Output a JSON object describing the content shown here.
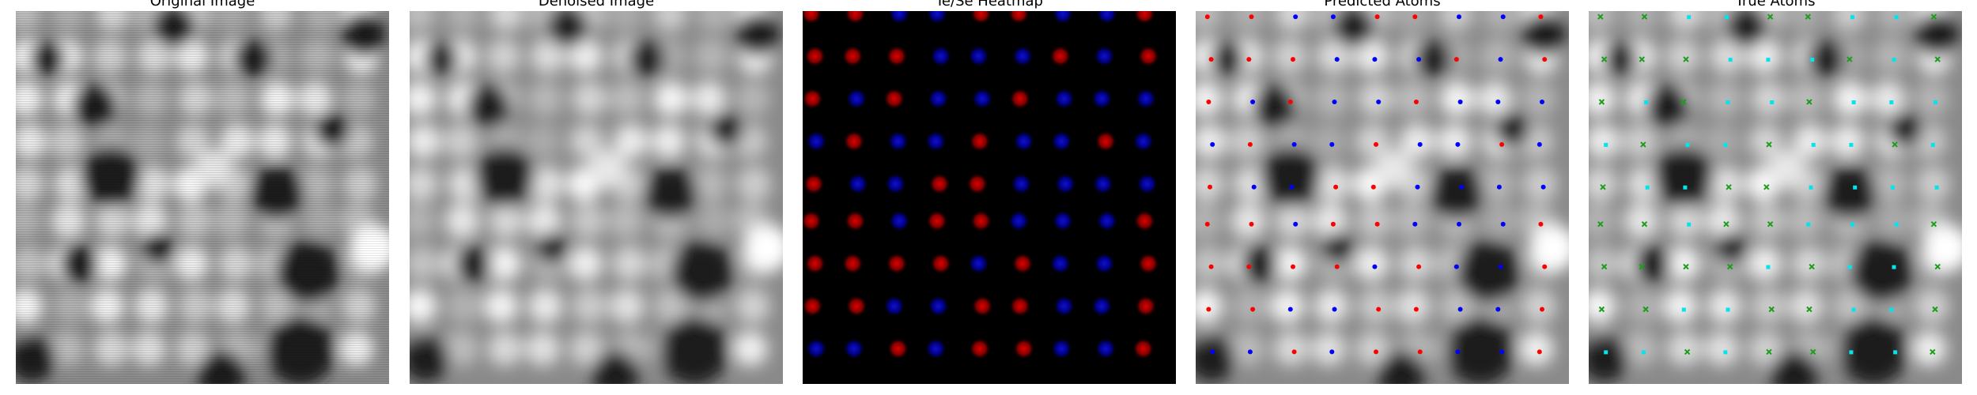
{
  "figure": {
    "panels": [
      {
        "title": "Original Image"
      },
      {
        "title": "Denoised Image"
      },
      {
        "title": "Te/Se Heatmap"
      },
      {
        "title": "Predicted Atoms"
      },
      {
        "title": "True Atoms"
      }
    ]
  },
  "colors": {
    "background": "#ffffff",
    "te_red": "#e00000",
    "se_blue": "#1010d0",
    "predicted_red": "#ff0000",
    "predicted_blue": "#0000ff",
    "true_cyan": "#00e5ee",
    "true_green": "#1a9e1a"
  }
}
